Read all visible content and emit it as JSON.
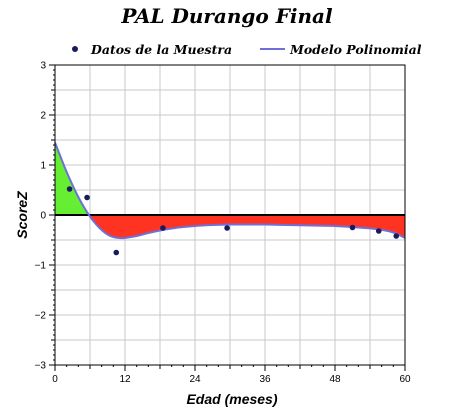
{
  "chart_data": {
    "type": "scatter",
    "title": "PAL Durango Final",
    "xlabel": "Edad (meses)",
    "ylabel": "ScoreZ",
    "xlim": [
      0,
      60
    ],
    "ylim": [
      -3,
      3
    ],
    "xticks": [
      0,
      12,
      24,
      36,
      48,
      60
    ],
    "yticks": [
      -3,
      -2,
      -1,
      0,
      1,
      2,
      3
    ],
    "x_tick_labels": [
      "0",
      "12",
      "24",
      "36",
      "48",
      "60"
    ],
    "y_tick_labels": [
      "−3",
      "−2",
      "−1",
      "0",
      "1",
      "2",
      "3"
    ],
    "grid": true,
    "legend": {
      "placement": "top",
      "entries": [
        "Datos de la Muestra",
        "Modelo Polinomial"
      ]
    },
    "series": [
      {
        "name": "Datos de la Muestra",
        "kind": "scatter",
        "color": "#1a1a5e",
        "x": [
          2.5,
          5.5,
          10.5,
          18.5,
          29.5,
          51,
          55.5,
          58.5
        ],
        "y": [
          0.52,
          0.35,
          -0.75,
          -0.26,
          -0.26,
          -0.25,
          -0.32,
          -0.42
        ]
      },
      {
        "name": "Modelo Polinomial",
        "kind": "line",
        "color": "#6f6fd8",
        "x": [
          0,
          1,
          2,
          3,
          4,
          5,
          6,
          7,
          8,
          9,
          10,
          11,
          12,
          13,
          14,
          16,
          18,
          20,
          22,
          24,
          27,
          30,
          33,
          36,
          40,
          44,
          48,
          52,
          55,
          58,
          60
        ],
        "y": [
          1.45,
          1.15,
          0.86,
          0.6,
          0.36,
          0.15,
          -0.03,
          -0.18,
          -0.3,
          -0.39,
          -0.44,
          -0.46,
          -0.46,
          -0.44,
          -0.42,
          -0.36,
          -0.31,
          -0.27,
          -0.24,
          -0.22,
          -0.2,
          -0.19,
          -0.19,
          -0.19,
          -0.2,
          -0.21,
          -0.22,
          -0.25,
          -0.28,
          -0.35,
          -0.46
        ]
      }
    ],
    "fill_colors": {
      "above_zero": "#66ee33",
      "below_zero": "#ff3322"
    }
  }
}
